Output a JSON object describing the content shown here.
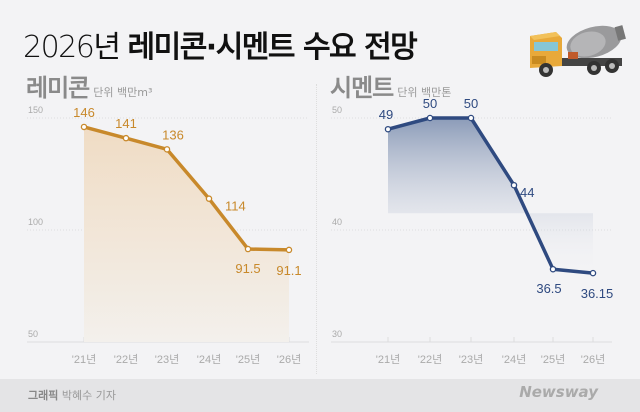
{
  "title": {
    "year": "2026년",
    "main": "레미콘·시멘트 수요 전망"
  },
  "panels": [
    {
      "name": "레미콘",
      "unit": "단위 백만m³",
      "color": "#c8892b"
    },
    {
      "name": "시멘트",
      "unit": "단위 백만톤",
      "color": "#2f4a80"
    }
  ],
  "footer": {
    "credit_label": "그래픽",
    "credit_name": "박혜수 기자",
    "logo": "Newsway"
  },
  "chart_data": [
    {
      "type": "area",
      "title": "레미콘",
      "ylabel": "단위 백만m³",
      "categories": [
        "'21년",
        "'22년",
        "'23년",
        "'24년",
        "'25년",
        "'26년"
      ],
      "values": [
        146,
        141,
        136,
        114,
        91.5,
        91.1
      ],
      "value_labels": [
        "146",
        "141",
        "136",
        "114",
        "91.5",
        "91.1"
      ],
      "yticks": [
        50,
        100,
        150
      ],
      "ylim": [
        50,
        150
      ],
      "grid": true,
      "color": "#c8892b"
    },
    {
      "type": "area",
      "title": "시멘트",
      "ylabel": "단위 백만톤",
      "categories": [
        "'21년",
        "'22년",
        "'23년",
        "'24년",
        "'25년",
        "'26년"
      ],
      "values": [
        49,
        50,
        50,
        44,
        36.5,
        36.15
      ],
      "value_labels": [
        "49",
        "50",
        "50",
        "44",
        "36.5",
        "36.15"
      ],
      "yticks": [
        30,
        40,
        50
      ],
      "ylim": [
        30,
        50
      ],
      "grid": true,
      "color": "#2f4a80"
    }
  ]
}
